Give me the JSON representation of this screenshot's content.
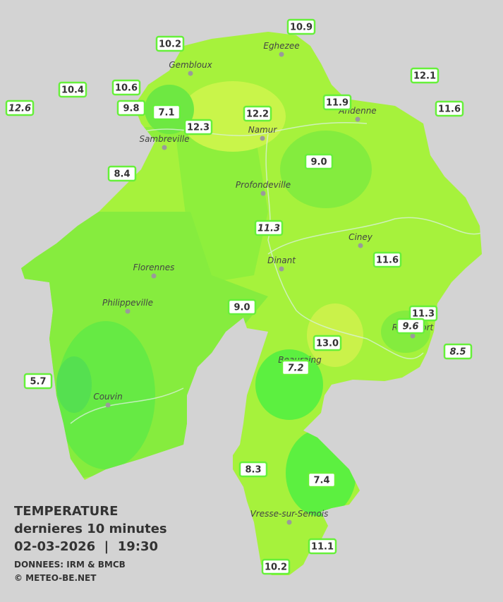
{
  "towns": [
    "Eghezee",
    "Gembloux",
    "Andenne",
    "Namur",
    "Sambreville",
    "Profondeville",
    "Ciney",
    "Dinant",
    "Florennes",
    "Philippeville",
    "Rochefort",
    "Beauraing",
    "Couvin",
    "Vresse-sur-Semois"
  ],
  "stations": [
    {
      "value": "10.9"
    },
    {
      "value": "10.2"
    },
    {
      "value": "12.1"
    },
    {
      "value": "10.4"
    },
    {
      "value": "10.6"
    },
    {
      "value": "12.6",
      "italic": true
    },
    {
      "value": "9.8"
    },
    {
      "value": "7.1"
    },
    {
      "value": "11.9"
    },
    {
      "value": "11.6"
    },
    {
      "value": "12.2"
    },
    {
      "value": "12.3"
    },
    {
      "value": "9.0"
    },
    {
      "value": "8.4"
    },
    {
      "value": "11.3",
      "italic": true
    },
    {
      "value": "11.6"
    },
    {
      "value": "9.0"
    },
    {
      "value": "11.3"
    },
    {
      "value": "9.6",
      "italic": true
    },
    {
      "value": "13.0"
    },
    {
      "value": "8.5",
      "italic": true
    },
    {
      "value": "7.2",
      "italic": true
    },
    {
      "value": "5.7"
    },
    {
      "value": "8.3"
    },
    {
      "value": "7.4"
    },
    {
      "value": "11.1"
    },
    {
      "value": "10.2"
    }
  ],
  "legend": {
    "title": "TEMPERATURE",
    "subtitle": "dernieres 10 minutes",
    "datetime": "02-03-2026  |  19:30",
    "source": "DONNEES: IRM & BMCB",
    "copyright": "© METEO-BE.NET"
  }
}
